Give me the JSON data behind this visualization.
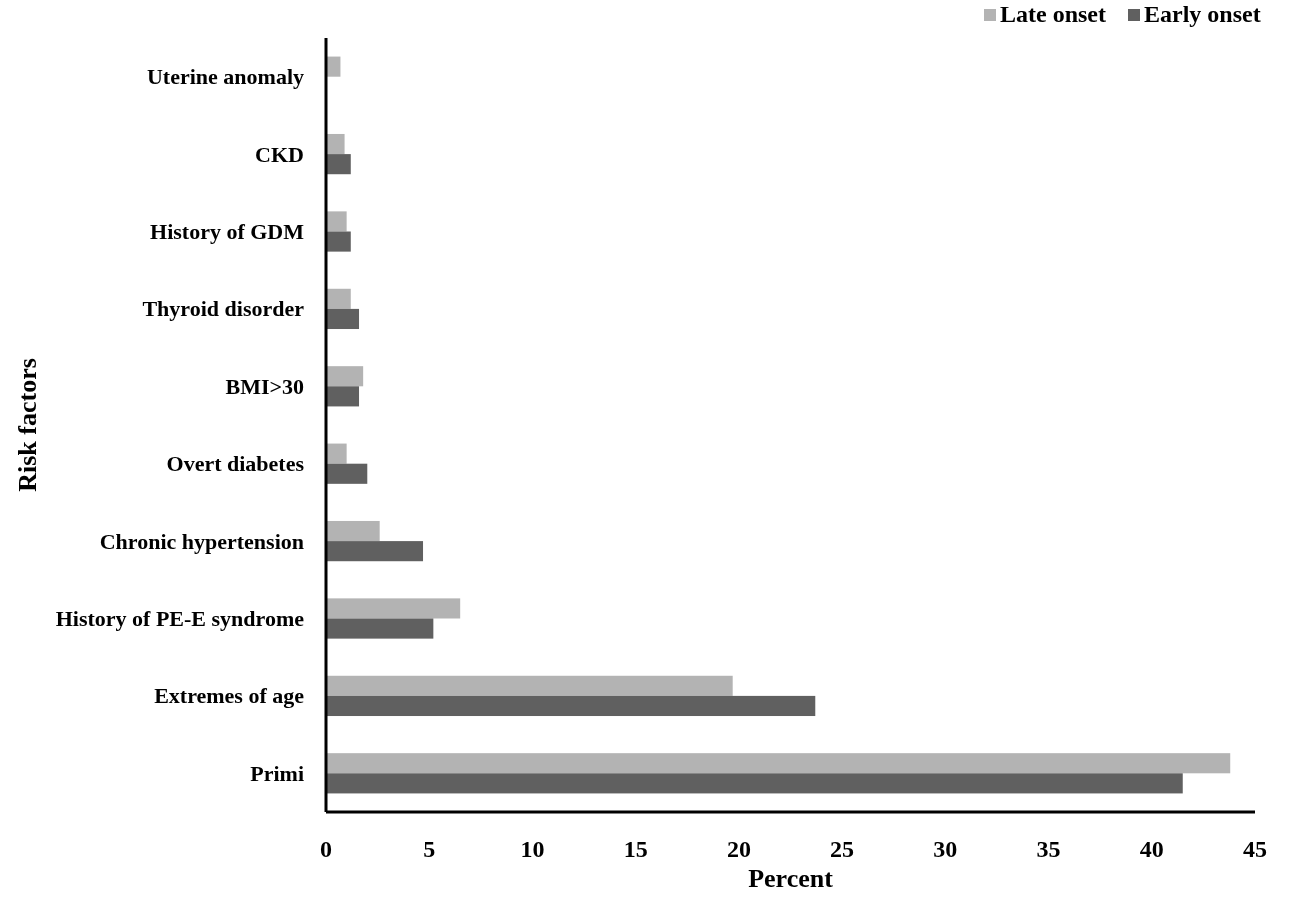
{
  "chart_data": {
    "type": "bar",
    "orientation": "horizontal",
    "xlabel": "Percent",
    "ylabel": "Risk factors",
    "categories": [
      "Uterine anomaly",
      "CKD",
      "History of GDM",
      "Thyroid disorder",
      "BMI>30",
      "Overt diabetes",
      "Chronic hypertension",
      "History of PE-E syndrome",
      "Extremes of age",
      "Primi"
    ],
    "series": [
      {
        "name": "Late onset",
        "color": "#b3b3b3",
        "values": [
          0.7,
          0.9,
          1.0,
          1.2,
          1.8,
          1.0,
          2.6,
          6.5,
          19.7,
          43.8
        ]
      },
      {
        "name": "Early onset",
        "color": "#606060",
        "values": [
          0,
          1.2,
          1.2,
          1.6,
          1.6,
          2.0,
          4.7,
          5.2,
          23.7,
          41.5
        ]
      }
    ],
    "xlim": [
      0,
      45
    ],
    "xticks": [
      0,
      5,
      10,
      15,
      20,
      25,
      30,
      35,
      40,
      45
    ],
    "grid": false,
    "legend": "top right"
  }
}
